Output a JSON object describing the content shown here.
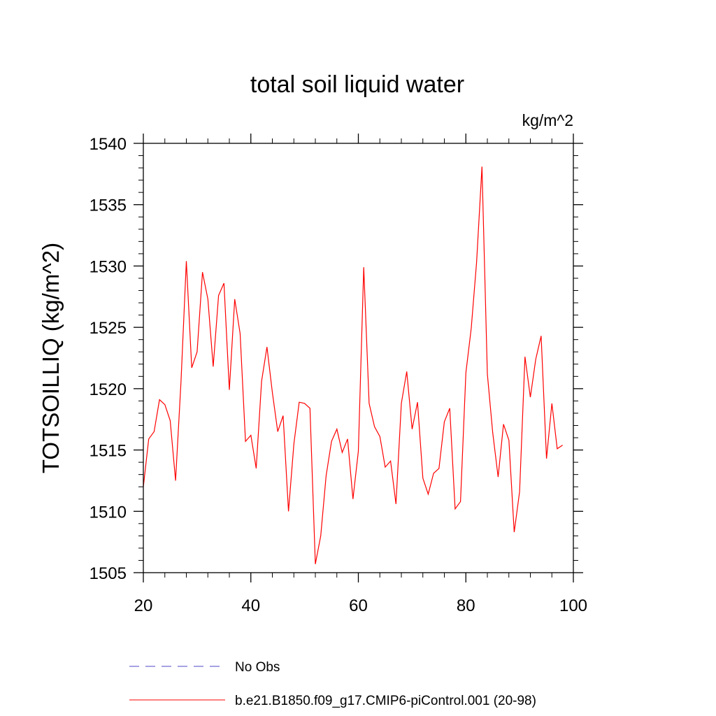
{
  "chart_data": {
    "type": "line",
    "title": "total soil liquid water",
    "units_label": "kg/m^2",
    "xlabel": "",
    "ylabel": "TOTSOILLIQ  (kg/m^2)",
    "xlim": [
      20,
      100
    ],
    "ylim": [
      1505,
      1540
    ],
    "x_ticks": [
      20,
      40,
      60,
      80,
      100
    ],
    "x_tick_labels": [
      "20",
      "40",
      "60",
      "80",
      "100"
    ],
    "y_ticks": [
      1505,
      1510,
      1515,
      1520,
      1525,
      1530,
      1535,
      1540
    ],
    "y_tick_labels": [
      "1505",
      "1510",
      "1515",
      "1520",
      "1525",
      "1530",
      "1535",
      "1540"
    ],
    "legend_position": "bottom",
    "series": [
      {
        "name": "No Obs",
        "color": "#4b46c8",
        "dash": "dashed",
        "x": [],
        "values": []
      },
      {
        "name": "b.e21.B1850.f09_g17.CMIP6-piControl.001 (20-98)",
        "color": "#ff0000",
        "dash": "solid",
        "x": [
          20,
          21,
          22,
          23,
          24,
          25,
          26,
          27,
          28,
          29,
          30,
          31,
          32,
          33,
          34,
          35,
          36,
          37,
          38,
          39,
          40,
          41,
          42,
          43,
          44,
          45,
          46,
          47,
          48,
          49,
          50,
          51,
          52,
          53,
          54,
          55,
          56,
          57,
          58,
          59,
          60,
          61,
          62,
          63,
          64,
          65,
          66,
          67,
          68,
          69,
          70,
          71,
          72,
          73,
          74,
          75,
          76,
          77,
          78,
          79,
          80,
          81,
          82,
          83,
          84,
          85,
          86,
          87,
          88,
          89,
          90,
          91,
          92,
          93,
          94,
          95,
          96,
          97,
          98
        ],
        "values": [
          1512.0,
          1515.9,
          1516.5,
          1519.1,
          1518.7,
          1517.4,
          1512.5,
          1520.5,
          1530.4,
          1521.7,
          1523.0,
          1529.5,
          1527.3,
          1521.8,
          1527.6,
          1528.6,
          1519.9,
          1527.3,
          1524.5,
          1515.7,
          1516.2,
          1513.5,
          1520.6,
          1523.4,
          1519.7,
          1516.5,
          1517.8,
          1510.0,
          1515.5,
          1518.9,
          1518.8,
          1518.4,
          1505.7,
          1508.0,
          1512.9,
          1515.7,
          1516.7,
          1514.8,
          1515.9,
          1511.0,
          1514.9,
          1529.9,
          1518.8,
          1516.9,
          1516.1,
          1513.6,
          1514.1,
          1510.6,
          1518.8,
          1521.4,
          1516.7,
          1518.9,
          1512.7,
          1511.4,
          1513.1,
          1513.5,
          1517.3,
          1518.4,
          1510.2,
          1510.8,
          1521.3,
          1524.9,
          1530.3,
          1538.1,
          1521.2,
          1516.4,
          1512.8,
          1517.1,
          1515.8,
          1508.3,
          1511.6,
          1522.6,
          1519.3,
          1522.4,
          1524.3,
          1514.3,
          1518.8,
          1515.1,
          1515.4
        ]
      }
    ]
  }
}
